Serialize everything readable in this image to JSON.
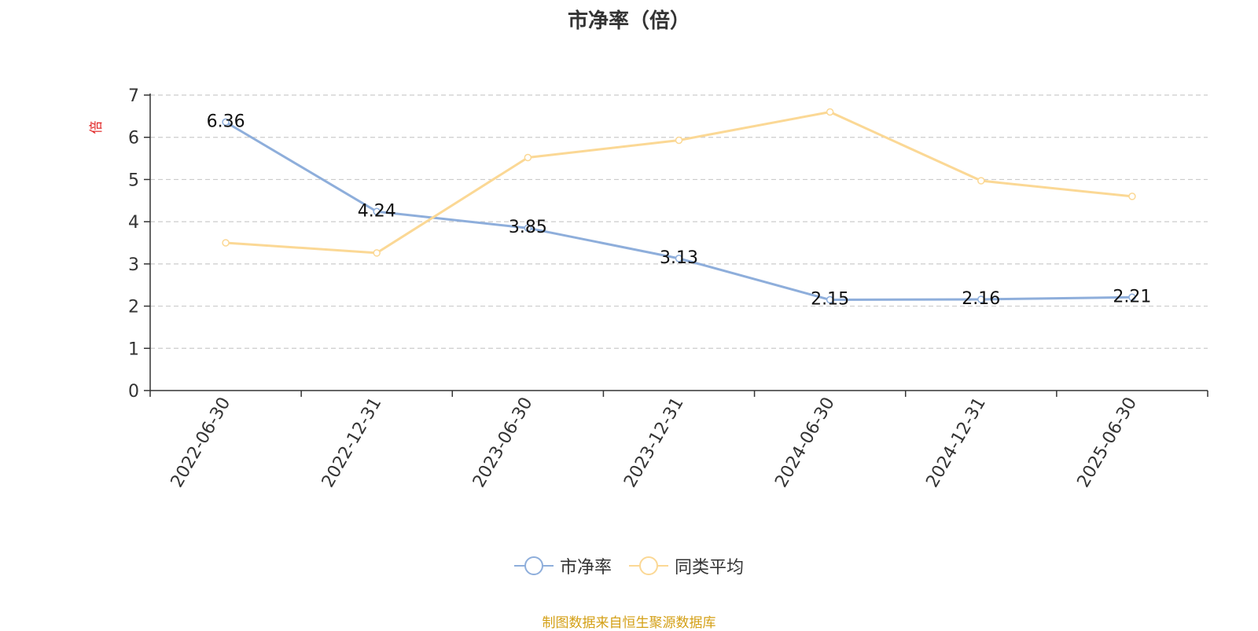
{
  "chart_data": {
    "type": "line",
    "title": "市净率（倍）",
    "ylabel": "倍",
    "xlabel": "",
    "categories": [
      "2022-06-30",
      "2022-12-31",
      "2023-06-30",
      "2023-12-31",
      "2024-06-30",
      "2024-12-31",
      "2025-06-30"
    ],
    "ylim": [
      0,
      7
    ],
    "yticks": [
      0,
      1,
      2,
      3,
      4,
      5,
      6,
      7
    ],
    "grid": true,
    "legend_position": "bottom",
    "series": [
      {
        "name": "市净率",
        "color": "#8eaedb",
        "values": [
          6.36,
          4.24,
          3.85,
          3.13,
          2.15,
          2.16,
          2.21
        ],
        "data_labels": [
          "6.36",
          "4.24",
          "3.85",
          "3.13",
          "2.15",
          "2.16",
          "2.21"
        ]
      },
      {
        "name": "同类平均",
        "color": "#fbd895",
        "values": [
          3.5,
          3.26,
          5.52,
          5.93,
          6.6,
          4.97,
          4.6
        ]
      }
    ]
  },
  "footer": {
    "source": "制图数据来自恒生聚源数据库"
  },
  "colors": {
    "axis_label_color": "#e02020",
    "source_color": "#d4a017"
  }
}
